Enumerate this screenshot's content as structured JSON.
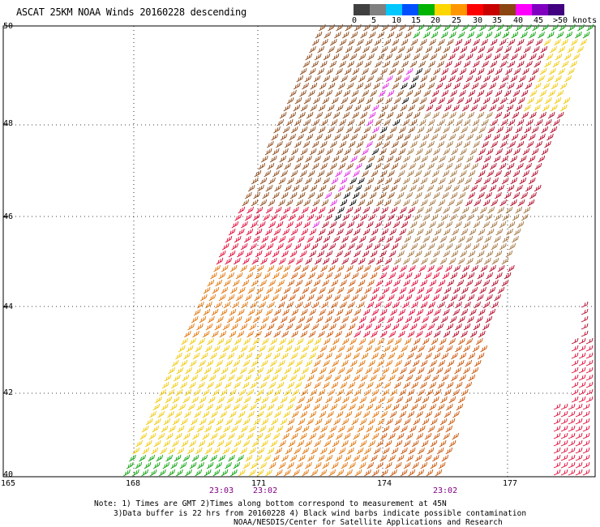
{
  "header": {
    "title": "ASCAT 25KM NOAA Winds 20160228 descending"
  },
  "legend": {
    "labels": [
      "0",
      "5",
      "10",
      "15",
      "20",
      "25",
      "30",
      "35",
      "40",
      "45",
      ">50 knots"
    ],
    "colors": [
      "#404040",
      "#808080",
      "#00c8ff",
      "#0050ff",
      "#00b400",
      "#ffd700",
      "#ff9600",
      "#ff0000",
      "#c80000",
      "#8b4513",
      "#ff00ff",
      "#8000c0",
      "#400080"
    ]
  },
  "axes": {
    "lat_labels": [
      "50",
      "48",
      "46",
      "44",
      "42",
      "40"
    ],
    "lon_labels": [
      "165",
      "168",
      "171",
      "174",
      "177"
    ]
  },
  "times": [
    "23:03",
    "23:02",
    "23:02"
  ],
  "notes": {
    "line1": "Note: 1) Times are GMT 2)Times along bottom correspond to measurement at 45N",
    "line2": "3)Data buffer is 22 hrs from 20160228 4) Black wind barbs indicate possible contamination",
    "line3": "NOAA/NESDIS/Center for Satellite Applications and Research"
  },
  "swath_colors": {
    "yellow": "#f0c800",
    "orange": "#e07000",
    "darkorange": "#c85000",
    "red": "#e00030",
    "crimson": "#b00020",
    "brown": "#8b4513",
    "tan": "#a0703a",
    "magenta": "#e020e0",
    "green": "#00a000",
    "black": "#000000"
  }
}
